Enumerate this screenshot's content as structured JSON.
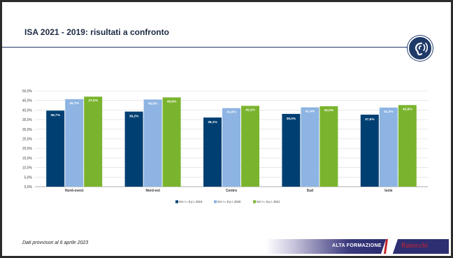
{
  "slide": {
    "title": "ISA 2021 - 2019: risultati a confronto",
    "footnote": "Dati provvisori al 6 aprile 2023",
    "brand_left": "ALTA FORMAZIONE",
    "brand_right": "Ranocchi",
    "badge_icon": "ear-icon"
  },
  "colors": {
    "title_rule": "#1f3a68",
    "series": [
      "#003f72",
      "#8db4e2",
      "#7ab42e"
    ],
    "brand_red": "#d2232a"
  },
  "chart_data": {
    "type": "bar",
    "title": "",
    "xlabel": "",
    "ylabel": "",
    "categories": [
      "Nord-ovest",
      "Nord-est",
      "Centro",
      "Sud",
      "Isole"
    ],
    "series": [
      {
        "name": "ISA >= 8 p.i. 2019",
        "values": [
          39.7,
          39.2,
          36.1,
          38.0,
          37.6
        ],
        "labels": [
          "39,7%",
          "39,2%",
          "36,1%",
          "38,0%",
          "37,6%"
        ]
      },
      {
        "name": "ISA >= 8 p.i. 2020",
        "values": [
          45.7,
          45.5,
          41.0,
          41.4,
          41.3
        ],
        "labels": [
          "45,7%",
          "45,5%",
          "41,0%",
          "41,4%",
          "41,3%"
        ]
      },
      {
        "name": "ISA >= 8 p.i. 2021",
        "values": [
          47.0,
          46.6,
          42.2,
          42.0,
          42.6
        ],
        "labels": [
          "47,0%",
          "46,6%",
          "42,2%",
          "42,0%",
          "42,6%"
        ]
      }
    ],
    "ylim": [
      0,
      50
    ],
    "yticks": [
      "0,0%",
      "5,0%",
      "10,0%",
      "15,0%",
      "20,0%",
      "25,0%",
      "30,0%",
      "35,0%",
      "40,0%",
      "45,0%",
      "50,0%"
    ],
    "grid": true,
    "legend": "bottom"
  }
}
